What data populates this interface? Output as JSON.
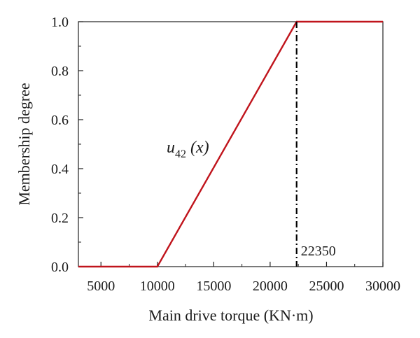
{
  "chart_data": {
    "type": "line",
    "title": "",
    "xlabel": "Main drive torque (KN·m)",
    "ylabel": "Membership degree",
    "xlim": [
      3000,
      30000
    ],
    "ylim": [
      0,
      1
    ],
    "x_ticks": [
      5000,
      10000,
      15000,
      20000,
      25000,
      30000
    ],
    "y_ticks": [
      0.0,
      0.2,
      0.4,
      0.6,
      0.8,
      1.0
    ],
    "y_tick_labels": [
      "0.0",
      "0.2",
      "0.4",
      "0.6",
      "0.8",
      "1.0"
    ],
    "grid": false,
    "series": [
      {
        "x": [
          3000,
          10000,
          22350,
          30000
        ],
        "y": [
          0,
          0,
          1,
          1
        ],
        "color": "#c0141c"
      }
    ],
    "series_annotation": {
      "base": "u",
      "subscript": "42",
      "suffix": "(x)"
    },
    "vline": {
      "x": 22350,
      "label": "22350",
      "style": "dash-dot",
      "color": "#000000"
    }
  }
}
